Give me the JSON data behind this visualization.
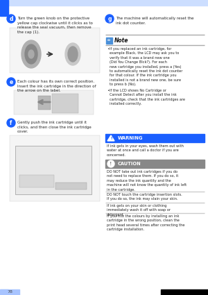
{
  "page_number": "78",
  "bg_color": "#ffffff",
  "left_stripe_color": "#1a5fff",
  "left_stripe_bottom_color": "#a8c4ff",
  "header_bar_color": "#ccdeff",
  "step_d_text": "Turn the green knob on the protective\nyellow cap clockwise until it clicks as to\nrelease the seal vacuum, then remove\nthe cap (1).",
  "step_e_text": "Each colour has its own correct position.\nInsert the ink cartridge in the direction of\nthe arrow on the label.",
  "step_f_text": "Gently push the ink cartridge until it\nclicks, and then close the ink cartridge\ncover.",
  "step_g_text": "The machine will automatically reset the\nink dot counter.",
  "note_title": "Note",
  "note_icon_color": "#4a90d9",
  "note_text1": "If you replaced an ink cartridge, for\nexample Black, the LCD may ask you to\nverify that it was a brand new one\n(Did You Change Blck?). For each\nnew cartridge you installed, press a (Yes)\nto automatically reset the ink dot counter\nfor that colour. If the ink cartridge you\ninstalled is not a brand new one, be sure\nto press b (No).",
  "note_text2": "If the LCD shows No Cartridge or\nCannot Detect after you install the ink\ncartridge, check that the ink cartridges are\ninstalled correctly.",
  "warning_bar_color": "#1a5fff",
  "warning_title": "WARNING",
  "warning_text": "If ink gets in your eyes, wash them out with\nwater at once and call a doctor if you are\nconcerned.",
  "caution_bar_color": "#888888",
  "caution_title": "CAUTION",
  "caution_text_1": "DO NOT take out ink cartridges if you do\nnot need to replace them. If you do so, it\nmay reduce the ink quantity and the\nmachine will not know the quantity of ink left\nin the cartridge.",
  "caution_text_2": "DO NOT touch the cartridge insertion slots.\nIf you do so, the ink may stain your skin.",
  "caution_text_3": "If ink gets on your skin or clothing\nimmediately wash it off with soap or\ndetergent.",
  "caution_text_4": "If you mix the colours by installing an ink\ncartridge in the wrong position, clean the\nprint head several times after correcting the\ncartridge installation.",
  "circle_color": "#1a5fff",
  "text_color": "#222222"
}
